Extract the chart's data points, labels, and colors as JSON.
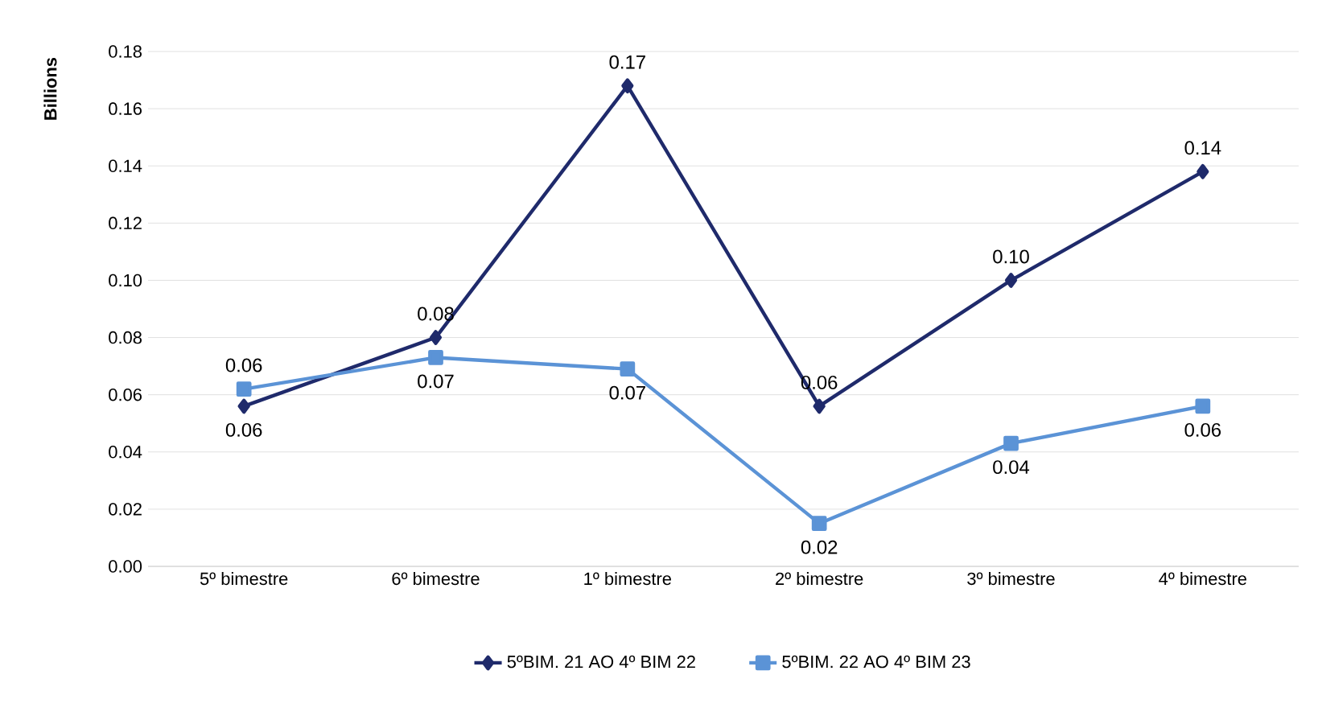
{
  "chart_data": {
    "type": "line",
    "ylabel": "Billions",
    "categories": [
      "5º bimestre",
      "6º bimestre",
      "1º bimestre",
      "2º bimestre",
      "3º bimestre",
      "4º bimestre"
    ],
    "series": [
      {
        "name": "5ºBIM. 21 AO 4º BIM 22",
        "color": "#1f2a6b",
        "marker": "diamond",
        "values": [
          0.056,
          0.08,
          0.168,
          0.056,
          0.1,
          0.138
        ],
        "value_labels": [
          "0.06",
          "0.08",
          "0.17",
          "0.06",
          "0.10",
          "0.14"
        ]
      },
      {
        "name": "5ºBIM. 22 AO 4º BIM 23",
        "color": "#5b93d6",
        "marker": "square",
        "values": [
          0.062,
          0.073,
          0.069,
          0.015,
          0.043,
          0.056
        ],
        "value_labels": [
          "0.06",
          "0.07",
          "0.07",
          "0.02",
          "0.04",
          "0.06"
        ]
      }
    ],
    "ylim": [
      0,
      0.18
    ],
    "yticks": [
      {
        "value": 0,
        "label": "0.00"
      },
      {
        "value": 0.02,
        "label": "0.02"
      },
      {
        "value": 0.04,
        "label": "0.04"
      },
      {
        "value": 0.06,
        "label": "0.06"
      },
      {
        "value": 0.08,
        "label": "0.08"
      },
      {
        "value": 0.1,
        "label": "0.10"
      },
      {
        "value": 0.12,
        "label": "0.12"
      },
      {
        "value": 0.14,
        "label": "0.14"
      },
      {
        "value": 0.16,
        "label": "0.16"
      },
      {
        "value": 0.18,
        "label": "0.18"
      }
    ],
    "grid": "y",
    "legend": "bottom",
    "line_style": "solid"
  }
}
